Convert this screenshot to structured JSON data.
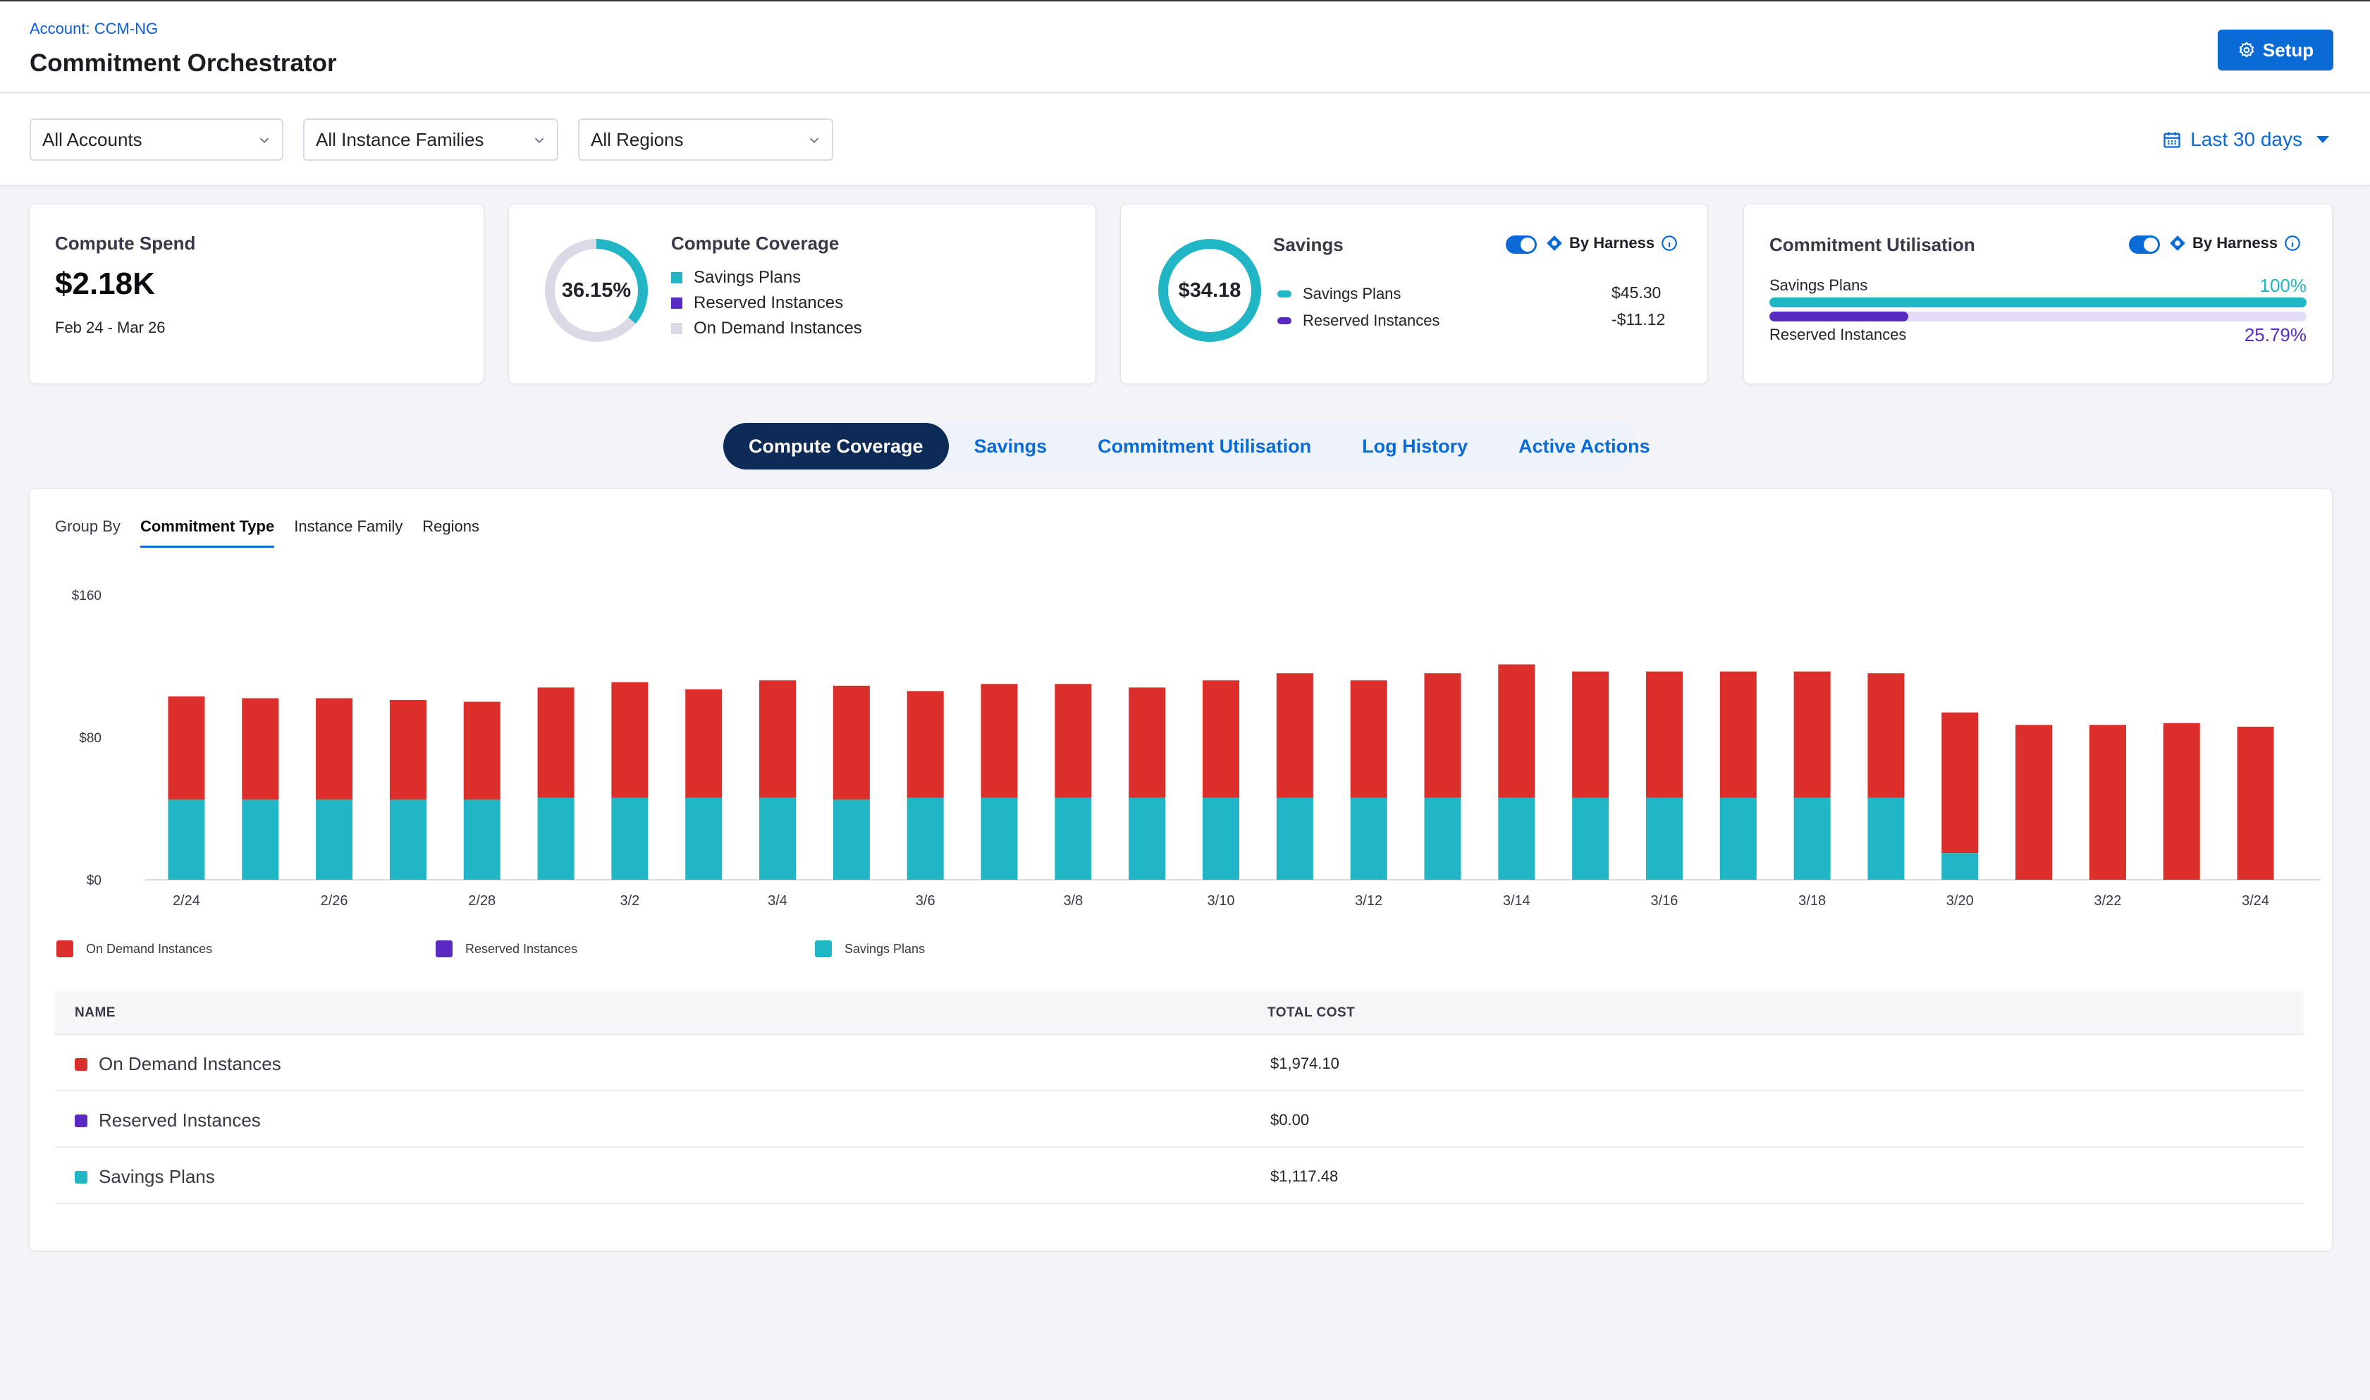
{
  "header": {
    "breadcrumb": "Account: CCM-NG",
    "title": "Commitment Orchestrator",
    "setup_label": "Setup"
  },
  "filters": {
    "accounts": "All Accounts",
    "instance_families": "All Instance Families",
    "regions": "All Regions",
    "date_range": "Last 30 days"
  },
  "cards": {
    "compute_spend": {
      "title": "Compute Spend",
      "value": "$2.18K",
      "period": "Feb 24 - Mar 26"
    },
    "compute_coverage": {
      "title": "Compute Coverage",
      "percent": "36.15%",
      "percent_value": 36.15,
      "legend": [
        "Savings Plans",
        "Reserved Instances",
        "On Demand Instances"
      ]
    },
    "savings": {
      "title": "Savings",
      "total": "$34.18",
      "by_harness": "By Harness",
      "rows": [
        {
          "label": "Savings Plans",
          "value": "$45.30"
        },
        {
          "label": "Reserved Instances",
          "value": "-$11.12"
        }
      ]
    },
    "utilisation": {
      "title": "Commitment Utilisation",
      "by_harness": "By Harness",
      "savings_plans_label": "Savings Plans",
      "savings_plans_pct": "100%",
      "savings_plans_value": 100,
      "reserved_label": "Reserved Instances",
      "reserved_pct": "25.79%",
      "reserved_value": 25.79
    }
  },
  "tabs": [
    "Compute Coverage",
    "Savings",
    "Commitment Utilisation",
    "Log History",
    "Active Actions"
  ],
  "group_by": {
    "label": "Group By",
    "options": [
      "Commitment Type",
      "Instance Family",
      "Regions"
    ]
  },
  "colors": {
    "on_demand": "#dc2f2b",
    "reserved": "#592bc0",
    "savings_plans": "#20b6c5",
    "accent": "#0b6bd6"
  },
  "chart_data": {
    "type": "bar",
    "stacked": true,
    "ylim": [
      0,
      160
    ],
    "yticks": [
      "$0",
      "$80",
      "$160"
    ],
    "ytick_values": [
      0,
      80,
      160
    ],
    "categories": [
      "2/24",
      "2/25",
      "2/26",
      "2/27",
      "2/28",
      "3/1",
      "3/2",
      "3/3",
      "3/4",
      "3/5",
      "3/6",
      "3/7",
      "3/8",
      "3/9",
      "3/10",
      "3/11",
      "3/12",
      "3/13",
      "3/14",
      "3/15",
      "3/16",
      "3/17",
      "3/18",
      "3/19",
      "3/20",
      "3/21",
      "3/22",
      "3/23",
      "3/24"
    ],
    "xtick_labels": [
      "2/24",
      "",
      "2/26",
      "",
      "2/28",
      "",
      "3/2",
      "",
      "3/4",
      "",
      "3/6",
      "",
      "3/8",
      "",
      "3/10",
      "",
      "3/12",
      "",
      "3/14",
      "",
      "3/16",
      "",
      "3/18",
      "",
      "3/20",
      "",
      "3/22",
      "",
      "3/24"
    ],
    "series": [
      {
        "name": "Savings Plans",
        "values": [
          45,
          45,
          45,
          45,
          45,
          46,
          46,
          46,
          46,
          45,
          46,
          46,
          46,
          46,
          46,
          46,
          46,
          46,
          46,
          46,
          46,
          46,
          46,
          46,
          15,
          0,
          0,
          0,
          0
        ]
      },
      {
        "name": "Reserved Instances",
        "values": [
          0,
          0,
          0,
          0,
          0,
          0,
          0,
          0,
          0,
          0,
          0,
          0,
          0,
          0,
          0,
          0,
          0,
          0,
          0,
          0,
          0,
          0,
          0,
          0,
          0,
          0,
          0,
          0,
          0
        ]
      },
      {
        "name": "On Demand Instances",
        "values": [
          58,
          57,
          57,
          56,
          55,
          62,
          65,
          61,
          66,
          64,
          60,
          64,
          64,
          62,
          66,
          70,
          66,
          70,
          75,
          71,
          71,
          71,
          71,
          70,
          79,
          87,
          87,
          88,
          86
        ]
      }
    ],
    "legend": [
      "On Demand Instances",
      "Reserved Instances",
      "Savings Plans"
    ]
  },
  "table": {
    "headers": {
      "name": "NAME",
      "total_cost": "TOTAL COST"
    },
    "rows": [
      {
        "name": "On Demand Instances",
        "cost": "$1,974.10"
      },
      {
        "name": "Reserved Instances",
        "cost": "$0.00"
      },
      {
        "name": "Savings Plans",
        "cost": "$1,117.48"
      }
    ]
  }
}
